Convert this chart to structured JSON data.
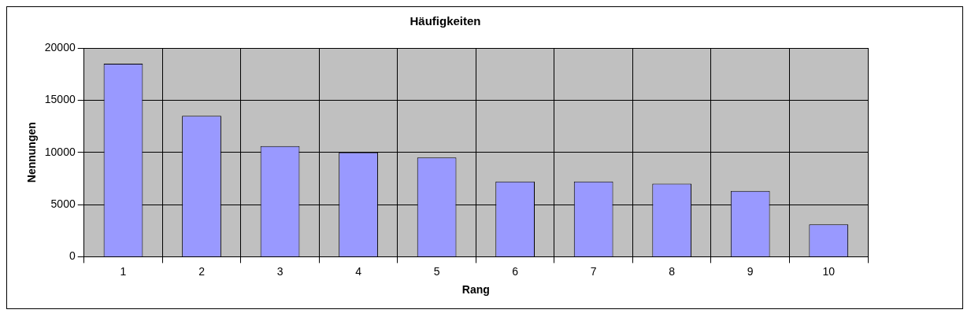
{
  "chart_data": {
    "type": "bar",
    "title": "Häufigkeiten",
    "xlabel": "Rang",
    "ylabel": "Nennungen",
    "categories": [
      "1",
      "2",
      "3",
      "4",
      "5",
      "6",
      "7",
      "8",
      "9",
      "10"
    ],
    "values": [
      18500,
      13500,
      10600,
      10000,
      9500,
      7200,
      7200,
      7000,
      6300,
      3100
    ],
    "color": "#9999ff",
    "ylim": [
      0,
      20000
    ],
    "yticks": [
      0,
      5000,
      10000,
      15000,
      20000
    ],
    "grid": true
  }
}
